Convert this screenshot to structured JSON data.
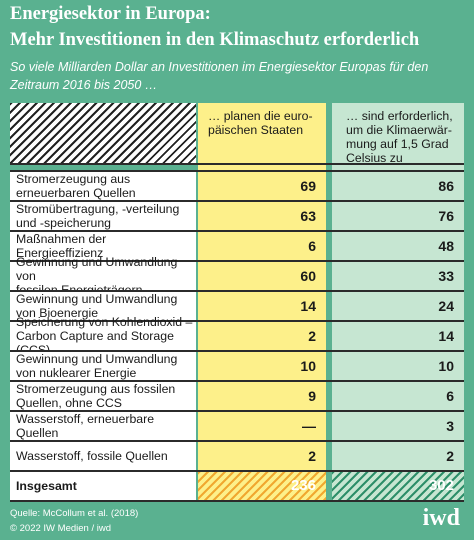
{
  "header": {
    "title_lines": [
      "Energiesektor in Europa:",
      "Mehr Investitionen in den Klimaschutz erforderlich"
    ],
    "subtitle_lines": [
      "So viele Milliarden Dollar an Investitionen im Energiesektor Europas für den",
      "Zeitraum 2016 bis 2050 …"
    ]
  },
  "table": {
    "columns": [
      [
        "… planen die euro-",
        "päischen Staaten"
      ],
      [
        "… sind erforderlich,",
        "um die Klimaerwär-",
        "mung auf 1,5 Grad",
        "Celsius zu begrenzen"
      ]
    ],
    "rows": [
      [
        [
          "Stromerzeugung aus",
          "erneuerbaren Quellen"
        ],
        69,
        86
      ],
      [
        [
          "Stromübertragung, -verteilung",
          "und -speicherung"
        ],
        63,
        76
      ],
      [
        [
          "Maßnahmen der Energieeffizienz"
        ],
        6,
        48
      ],
      [
        [
          "Gewinnung und Umwandlung von",
          "fossilen Energieträgern"
        ],
        60,
        33
      ],
      [
        [
          "Gewinnung und Umwandlung",
          "von Bioenergie"
        ],
        14,
        24
      ],
      [
        [
          "Speicherung von Kohlendioxid –",
          "Carbon Capture and Storage (CCS)"
        ],
        2,
        14
      ],
      [
        [
          "Gewinnung und Umwandlung",
          "von nuklearer Energie"
        ],
        10,
        10
      ],
      [
        [
          "Stromerzeugung aus fossilen",
          "Quellen, ohne CCS"
        ],
        9,
        6
      ],
      [
        [
          "Wasserstoff, erneuerbare Quellen"
        ],
        "—",
        3
      ],
      [
        [
          "Wasserstoff, fossile Quellen"
        ],
        2,
        2
      ]
    ],
    "total": [
      "Insgesamt",
      236,
      302
    ]
  },
  "footer": {
    "source": "Quelle: McCollum et al. (2018)",
    "copyright": "© 2022 IW Medien / iwd",
    "logo": "iwd"
  }
}
